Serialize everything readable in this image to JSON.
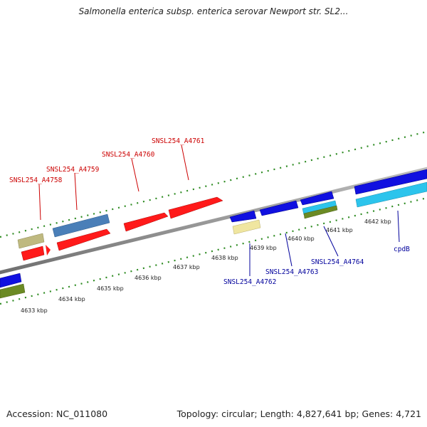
{
  "title": "Salmonella enterica subsp. enterica serovar Newport str. SL2...",
  "footer": {
    "accession": "Accession: NC_011080",
    "summary": "Topology: circular; Length: 4,827,641 bp; Genes: 4,721"
  },
  "colors": {
    "backbone": "#8c8c8c",
    "tick": "#2e8b22",
    "forward_label": "#cc0000",
    "reverse_label": "#00009c",
    "red_gene": "#ff1a1a",
    "blue_gene": "#1010e0",
    "steel_gene": "#4a7fb8",
    "cyan_gene": "#2cc4ec",
    "khaki_gene": "#bfb980",
    "olive_gene": "#6b8a24",
    "pale_gene": "#f0e6a0"
  },
  "ticks": [
    {
      "label": "4633 kbp"
    },
    {
      "label": "4634 kbp"
    },
    {
      "label": "4635 kbp"
    },
    {
      "label": "4636 kbp"
    },
    {
      "label": "4637 kbp"
    },
    {
      "label": "4638 kbp"
    },
    {
      "label": "4639 kbp"
    },
    {
      "label": "4640 kbp"
    },
    {
      "label": "4641 kbp"
    },
    {
      "label": "4642 kbp"
    }
  ],
  "gene_labels": [
    {
      "name": "SNSL254_A4758",
      "strand": "forward"
    },
    {
      "name": "SNSL254_A4759",
      "strand": "forward"
    },
    {
      "name": "SNSL254_A4760",
      "strand": "forward"
    },
    {
      "name": "SNSL254_A4761",
      "strand": "forward"
    },
    {
      "name": "SNSL254_A4762",
      "strand": "reverse"
    },
    {
      "name": "SNSL254_A4763",
      "strand": "reverse"
    },
    {
      "name": "SNSL254_A4764",
      "strand": "reverse"
    },
    {
      "name": "cpdB",
      "strand": "reverse"
    }
  ]
}
